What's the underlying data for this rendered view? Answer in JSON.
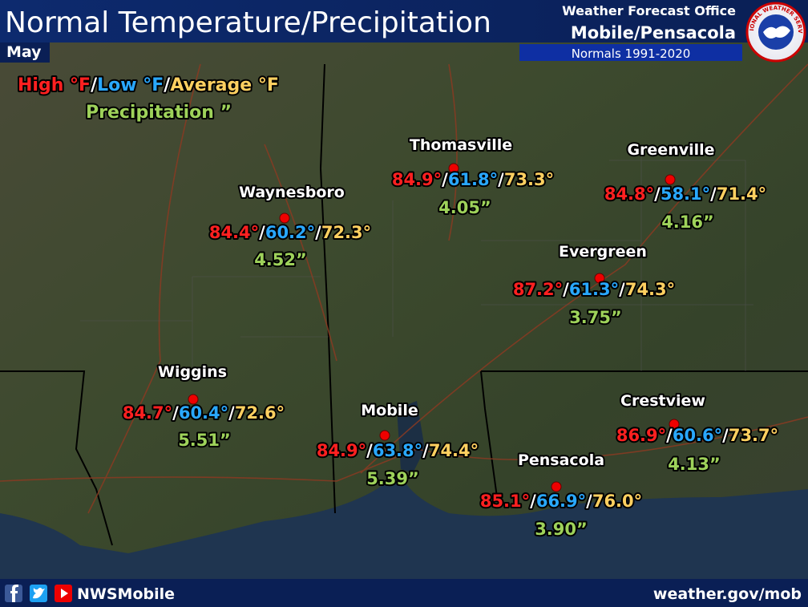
{
  "header": {
    "title": "Normal Temperature/Precipitation",
    "month": "May",
    "office_line": "Weather Forecast Office",
    "office": "Mobile/Pensacola",
    "normals": "Normals 1991-2020",
    "logo_text": "NATIONAL WEATHER SERVICE"
  },
  "legend": {
    "high": "High °F",
    "low": "Low °F",
    "average": "Average °F",
    "precipitation": "Precipitation ”",
    "separator": "/"
  },
  "cities": [
    {
      "name": "Waynesboro",
      "high": "84.4°",
      "low": "60.2°",
      "average": "72.3°",
      "precipitation": "4.52”"
    },
    {
      "name": "Thomasville",
      "high": "84.9°",
      "low": "61.8°",
      "average": "73.3°",
      "precipitation": "4.05”"
    },
    {
      "name": "Greenville",
      "high": "84.8°",
      "low": "58.1°",
      "average": "71.4°",
      "precipitation": "4.16”"
    },
    {
      "name": "Evergreen",
      "high": "87.2°",
      "low": "61.3°",
      "average": "74.3°",
      "precipitation": "3.75”"
    },
    {
      "name": "Wiggins",
      "high": "84.7°",
      "low": "60.4°",
      "average": "72.6°",
      "precipitation": "5.51”"
    },
    {
      "name": "Mobile",
      "high": "84.9°",
      "low": "63.8°",
      "average": "74.4°",
      "precipitation": "5.39”"
    },
    {
      "name": "Pensacola",
      "high": "85.1°",
      "low": "66.9°",
      "average": "76.0°",
      "precipitation": "3.90”"
    },
    {
      "name": "Crestview",
      "high": "86.9°",
      "low": "60.6°",
      "average": "73.7°",
      "precipitation": "4.13”"
    }
  ],
  "footer": {
    "handle": "NWSMobile",
    "website": "weather.gov/mob"
  }
}
